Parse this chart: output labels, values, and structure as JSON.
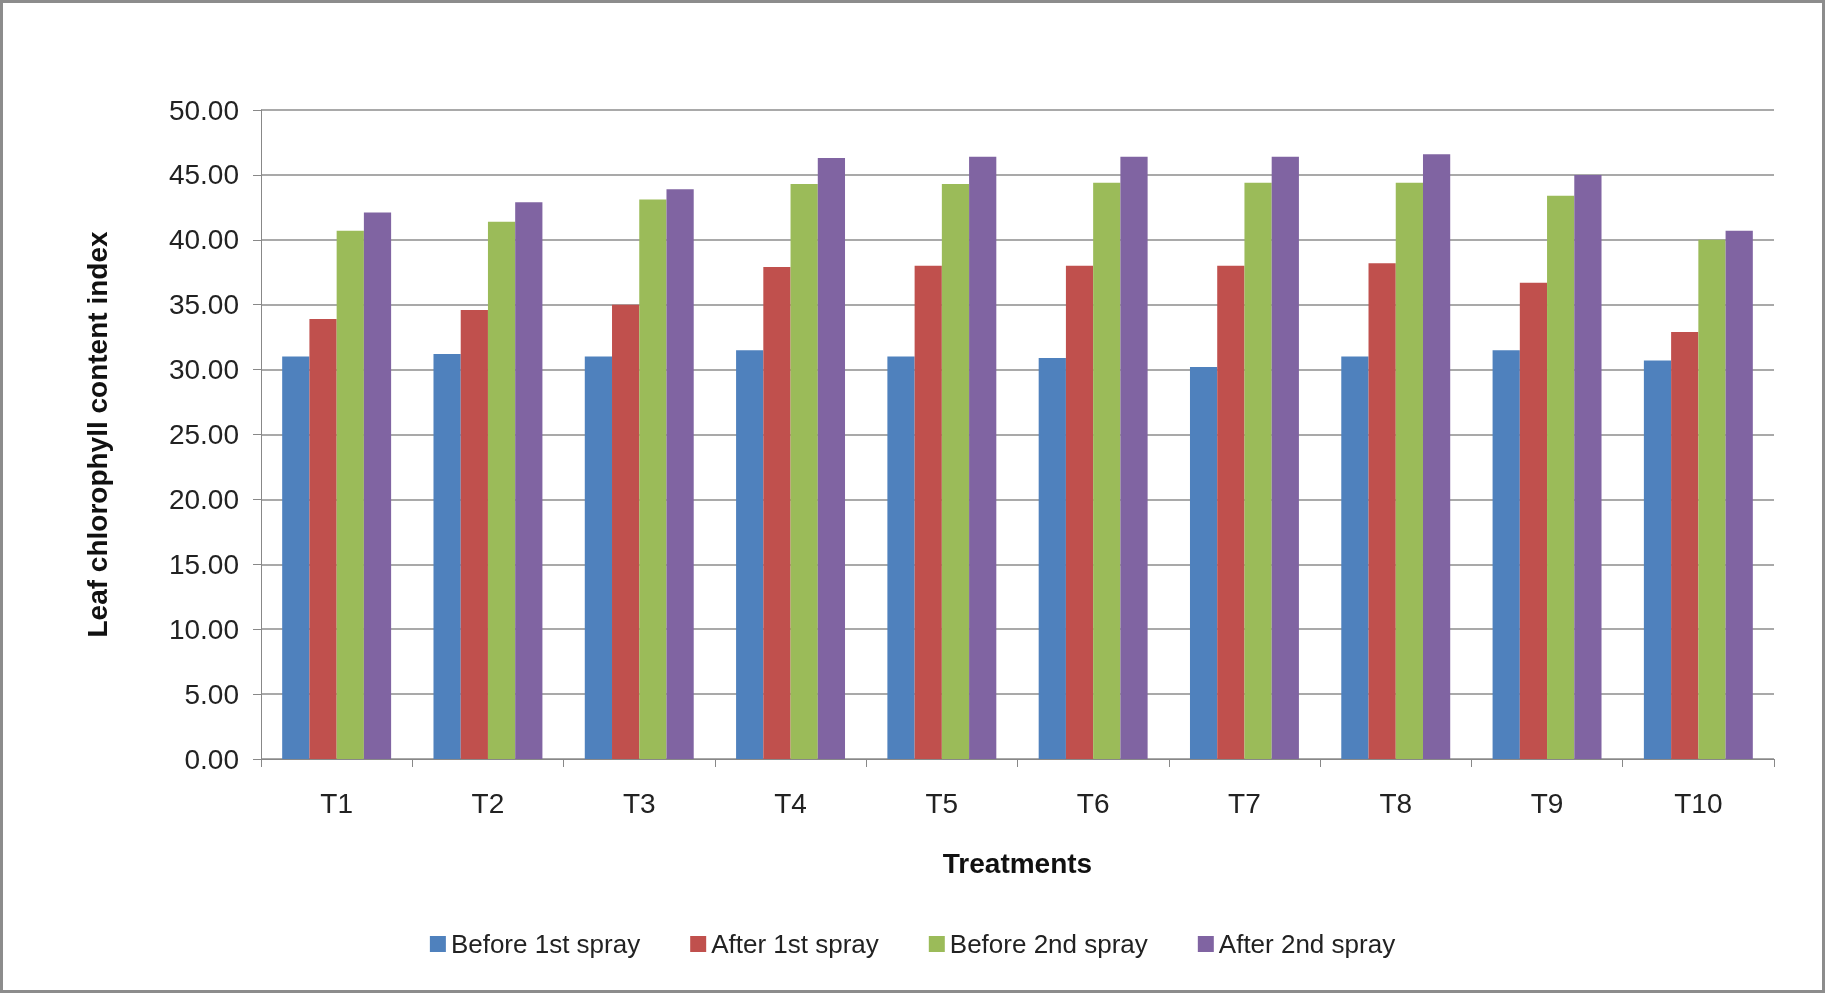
{
  "chart_data": {
    "type": "bar",
    "xlabel": "Treatments",
    "ylabel": "Leaf chlorophyll content index",
    "categories": [
      "T1",
      "T2",
      "T3",
      "T4",
      "T5",
      "T6",
      "T7",
      "T8",
      "T9",
      "T10"
    ],
    "series": [
      {
        "name": "Before 1st spray",
        "color": "#4f81bd",
        "values": [
          31.0,
          31.2,
          31.0,
          31.5,
          31.0,
          30.9,
          30.2,
          31.0,
          31.5,
          30.7
        ]
      },
      {
        "name": "After 1st spray",
        "color": "#c0504d",
        "values": [
          33.9,
          34.6,
          35.0,
          37.9,
          38.0,
          38.0,
          38.0,
          38.2,
          36.7,
          32.9
        ]
      },
      {
        "name": "Before 2nd spray",
        "color": "#9bbb59",
        "values": [
          40.7,
          41.4,
          43.1,
          44.3,
          44.3,
          44.4,
          44.4,
          44.4,
          43.4,
          40.0
        ]
      },
      {
        "name": "After 2nd spray",
        "color": "#8064a2",
        "values": [
          42.1,
          42.9,
          43.9,
          46.3,
          46.4,
          46.4,
          46.4,
          46.6,
          45.0,
          40.7
        ]
      }
    ],
    "ylim": [
      0,
      50
    ],
    "yticks": [
      {
        "value": 0,
        "label": "0.00"
      },
      {
        "value": 5,
        "label": "5.00"
      },
      {
        "value": 10,
        "label": "10.00"
      },
      {
        "value": 15,
        "label": "15.00"
      },
      {
        "value": 20,
        "label": "20.00"
      },
      {
        "value": 25,
        "label": "25.00"
      },
      {
        "value": 30,
        "label": "30.00"
      },
      {
        "value": 35,
        "label": "35.00"
      },
      {
        "value": 40,
        "label": "40.00"
      },
      {
        "value": 45,
        "label": "45.00"
      },
      {
        "value": 50,
        "label": "50.00"
      }
    ],
    "grid": "y",
    "legend": "bottom"
  }
}
